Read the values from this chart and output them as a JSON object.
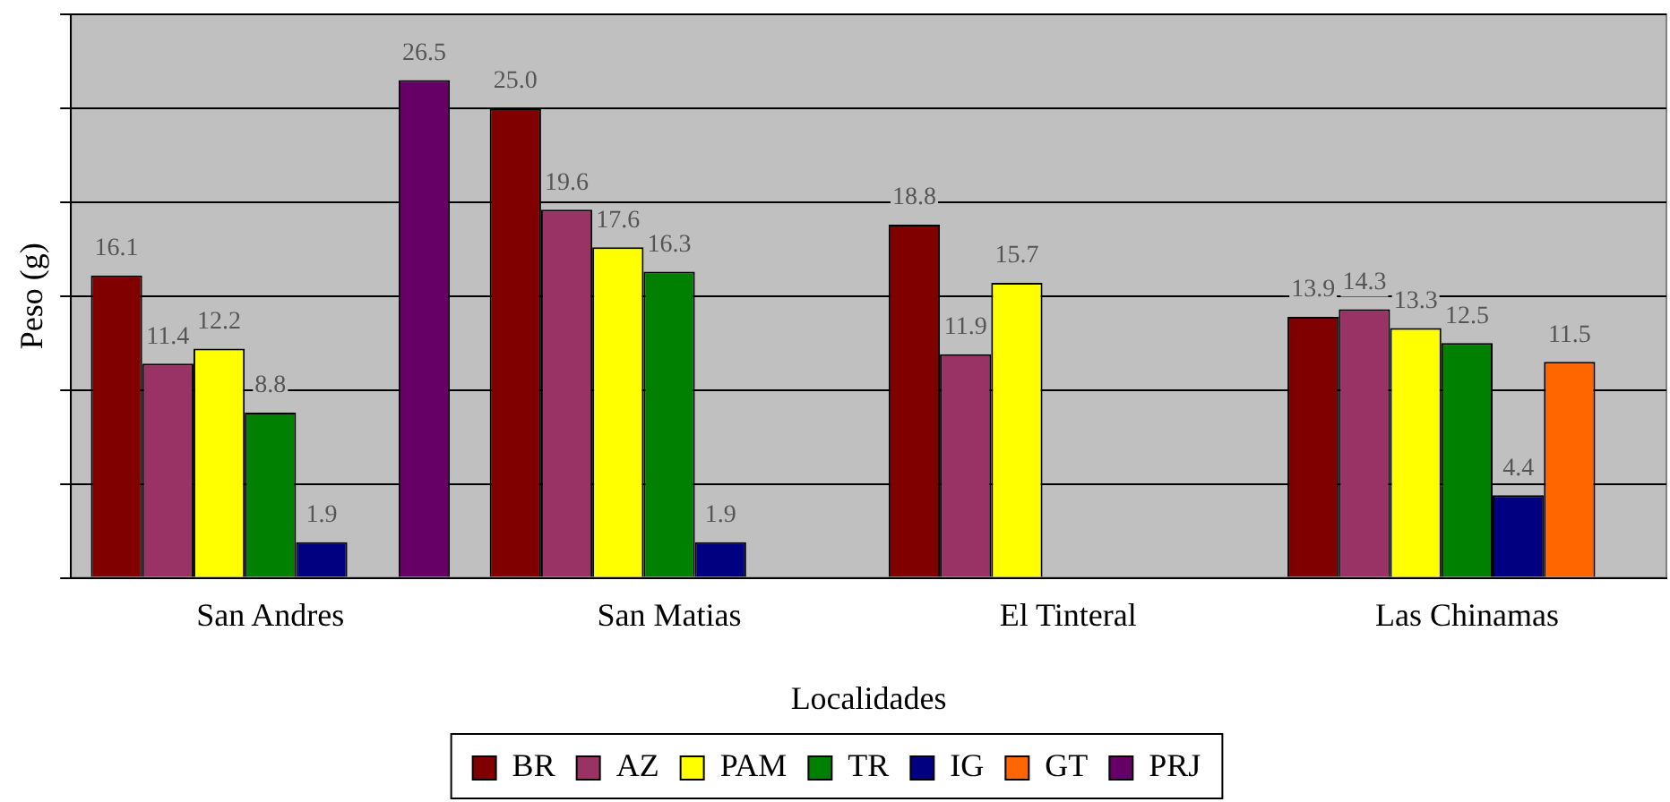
{
  "chart_data": {
    "type": "bar",
    "xlabel": "Localidades",
    "ylabel": "Peso (g)",
    "categories": [
      "San Andres",
      "San Matias",
      "El Tinteral",
      "Las Chinamas"
    ],
    "series": [
      {
        "name": "BR",
        "color": "#800000",
        "values": [
          16.1,
          25.0,
          18.8,
          13.9
        ],
        "value_labels": [
          "16.1",
          "25.0",
          "18.8",
          "13.9"
        ]
      },
      {
        "name": "AZ",
        "color": "#993366",
        "values": [
          11.4,
          19.6,
          11.9,
          14.3
        ],
        "value_labels": [
          "11.4",
          "19.6",
          "11.9",
          "14.3"
        ]
      },
      {
        "name": "PAM",
        "color": "#ffff00",
        "values": [
          12.2,
          17.6,
          15.7,
          13.3
        ],
        "value_labels": [
          "12.2",
          "17.6",
          "15.7",
          "13.3"
        ]
      },
      {
        "name": "TR",
        "color": "#008000",
        "values": [
          8.8,
          16.3,
          null,
          12.5
        ],
        "value_labels": [
          "8.8",
          "16.3",
          null,
          "12.5"
        ]
      },
      {
        "name": "IG",
        "color": "#000080",
        "values": [
          1.9,
          1.9,
          null,
          4.4
        ],
        "value_labels": [
          "1.9",
          "1.9",
          null,
          "4.4"
        ]
      },
      {
        "name": "GT",
        "color": "#ff6600",
        "values": [
          null,
          null,
          null,
          11.5
        ],
        "value_labels": [
          null,
          null,
          null,
          "11.5"
        ]
      },
      {
        "name": "PRJ",
        "color": "#660066",
        "values": [
          26.5,
          null,
          null,
          null
        ],
        "value_labels": [
          "26.5",
          null,
          null,
          null
        ]
      }
    ],
    "ylim": [
      0,
      30
    ],
    "tick_labels": "x",
    "grid": "y",
    "legend": "bottom"
  }
}
